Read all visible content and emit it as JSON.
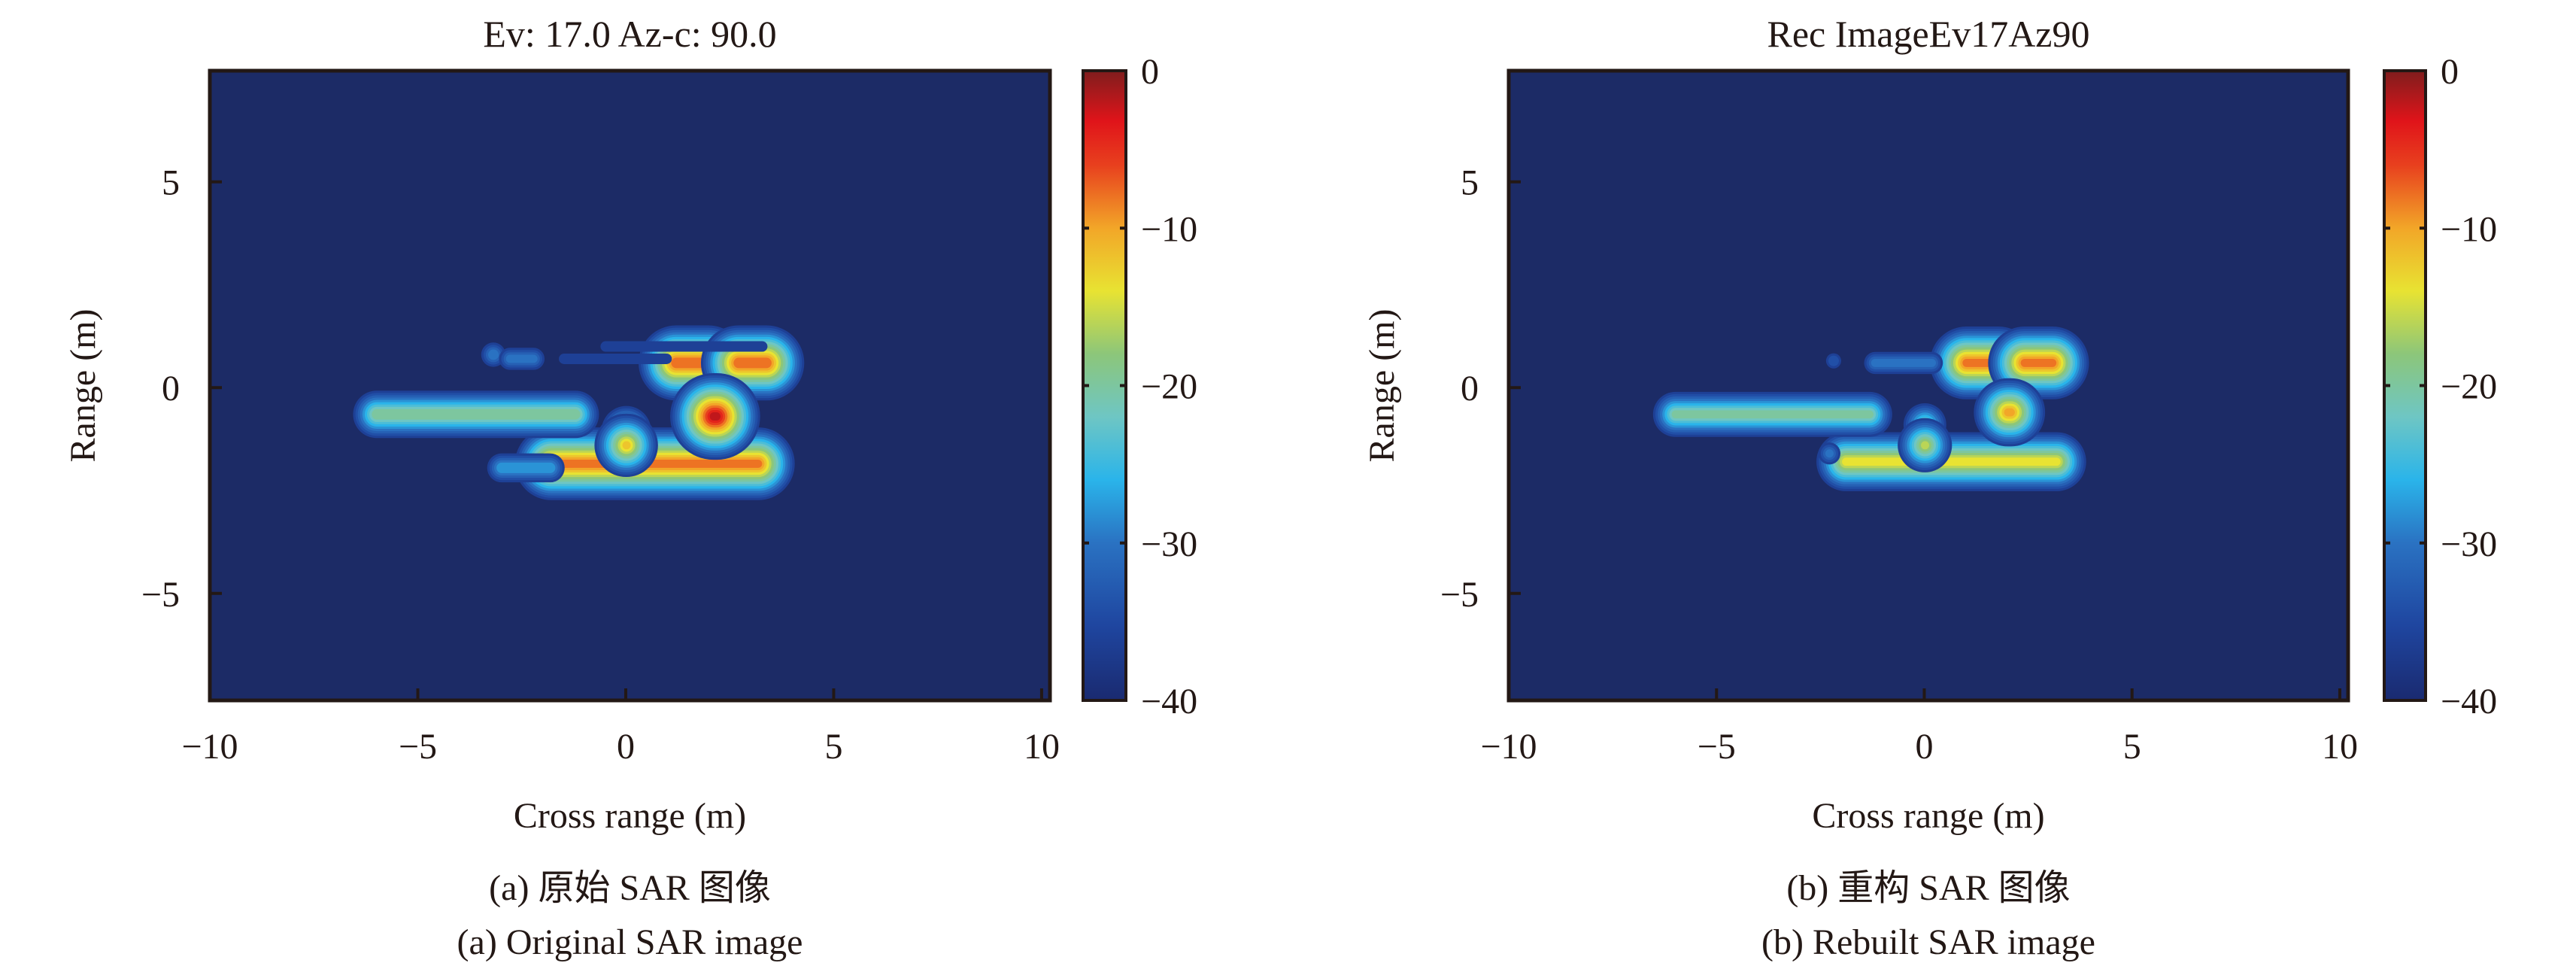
{
  "chart_data": [
    {
      "type": "heatmap",
      "title": "Ev: 17.0 Az-c: 90.0",
      "xlabel": "Cross range (m)",
      "ylabel": "Range (m)",
      "xlim": [
        -10,
        10.2
      ],
      "ylim": [
        -7.6,
        7.7
      ],
      "xticks": [
        -10,
        -5,
        0,
        5,
        10
      ],
      "xtick_labels": [
        "−10",
        "−5",
        "0",
        "5",
        "10"
      ],
      "yticks": [
        5,
        0,
        -5
      ],
      "ytick_labels": [
        "5",
        "0",
        "−5"
      ],
      "colorbar": {
        "range": [
          -40,
          0
        ],
        "ticks": [
          0,
          -10,
          -20,
          -30,
          -40
        ],
        "tick_labels": [
          "0",
          "−10",
          "−20",
          "−30",
          "−40"
        ]
      },
      "caption_cn": "(a) 原始 SAR 图像",
      "caption_en": "(a) Original SAR image",
      "scatterers": [
        {
          "x0": -1.8,
          "x1": 3.2,
          "y": -1.85,
          "peak_db": -8
        },
        {
          "x0": -3.0,
          "x1": -1.8,
          "y": -1.95,
          "peak_db": -27
        },
        {
          "x0": -6.0,
          "x1": -1.2,
          "y": -0.65,
          "peak_db": -19
        },
        {
          "x0": 1.2,
          "x1": 2.0,
          "y": 0.6,
          "peak_db": -7
        },
        {
          "x0": 2.7,
          "x1": 3.4,
          "y": 0.6,
          "peak_db": -7
        },
        {
          "x0": 2.1,
          "x1": 2.2,
          "y": -0.7,
          "peak_db": -2
        },
        {
          "x0": 0.0,
          "x1": 0.0,
          "y": -1.05,
          "peak_db": -18
        },
        {
          "x0": 0.0,
          "x1": 0.0,
          "y": -1.4,
          "peak_db": -12
        },
        {
          "x0": -3.2,
          "x1": -3.2,
          "y": 0.8,
          "peak_db": -29
        },
        {
          "x0": -2.8,
          "x1": -2.2,
          "y": 0.7,
          "peak_db": -30
        },
        {
          "x0": -0.5,
          "x1": 3.3,
          "y": 1.0,
          "peak_db": -35
        },
        {
          "x0": -1.5,
          "x1": 1.0,
          "y": 0.7,
          "peak_db": -35
        }
      ]
    },
    {
      "type": "heatmap",
      "title": "Rec ImageEv17Az90",
      "xlabel": "Cross range (m)",
      "ylabel": "Range (m)",
      "xlim": [
        -10,
        10.2
      ],
      "ylim": [
        -7.6,
        7.7
      ],
      "xticks": [
        -10,
        -5,
        0,
        5,
        10
      ],
      "xtick_labels": [
        "−10",
        "−5",
        "0",
        "5",
        "10"
      ],
      "yticks": [
        5,
        0,
        -5
      ],
      "ytick_labels": [
        "5",
        "0",
        "−5"
      ],
      "colorbar": {
        "range": [
          -40,
          0
        ],
        "ticks": [
          0,
          -10,
          -20,
          -30,
          -40
        ],
        "tick_labels": [
          "0",
          "−10",
          "−20",
          "−30",
          "−40"
        ]
      },
      "caption_cn": "(b) 重构 SAR 图像",
      "caption_en": "(b) Rebuilt SAR image",
      "scatterers": [
        {
          "x0": -1.9,
          "x1": 3.2,
          "y": -1.8,
          "peak_db": -14
        },
        {
          "x0": -6.0,
          "x1": -1.3,
          "y": -0.65,
          "peak_db": -20
        },
        {
          "x0": 1.0,
          "x1": 1.8,
          "y": 0.6,
          "peak_db": -8
        },
        {
          "x0": 2.4,
          "x1": 3.1,
          "y": 0.6,
          "peak_db": -8
        },
        {
          "x0": 2.0,
          "x1": 2.1,
          "y": -0.6,
          "peak_db": -10
        },
        {
          "x0": 0.0,
          "x1": 0.0,
          "y": -0.9,
          "peak_db": -21
        },
        {
          "x0": 0.0,
          "x1": 0.0,
          "y": -1.4,
          "peak_db": -16
        },
        {
          "x0": -1.2,
          "x1": 0.2,
          "y": 0.6,
          "peak_db": -30
        },
        {
          "x0": -2.2,
          "x1": -2.2,
          "y": 0.65,
          "peak_db": -33
        },
        {
          "x0": -2.3,
          "x1": -2.3,
          "y": -1.6,
          "peak_db": -30
        }
      ]
    }
  ]
}
